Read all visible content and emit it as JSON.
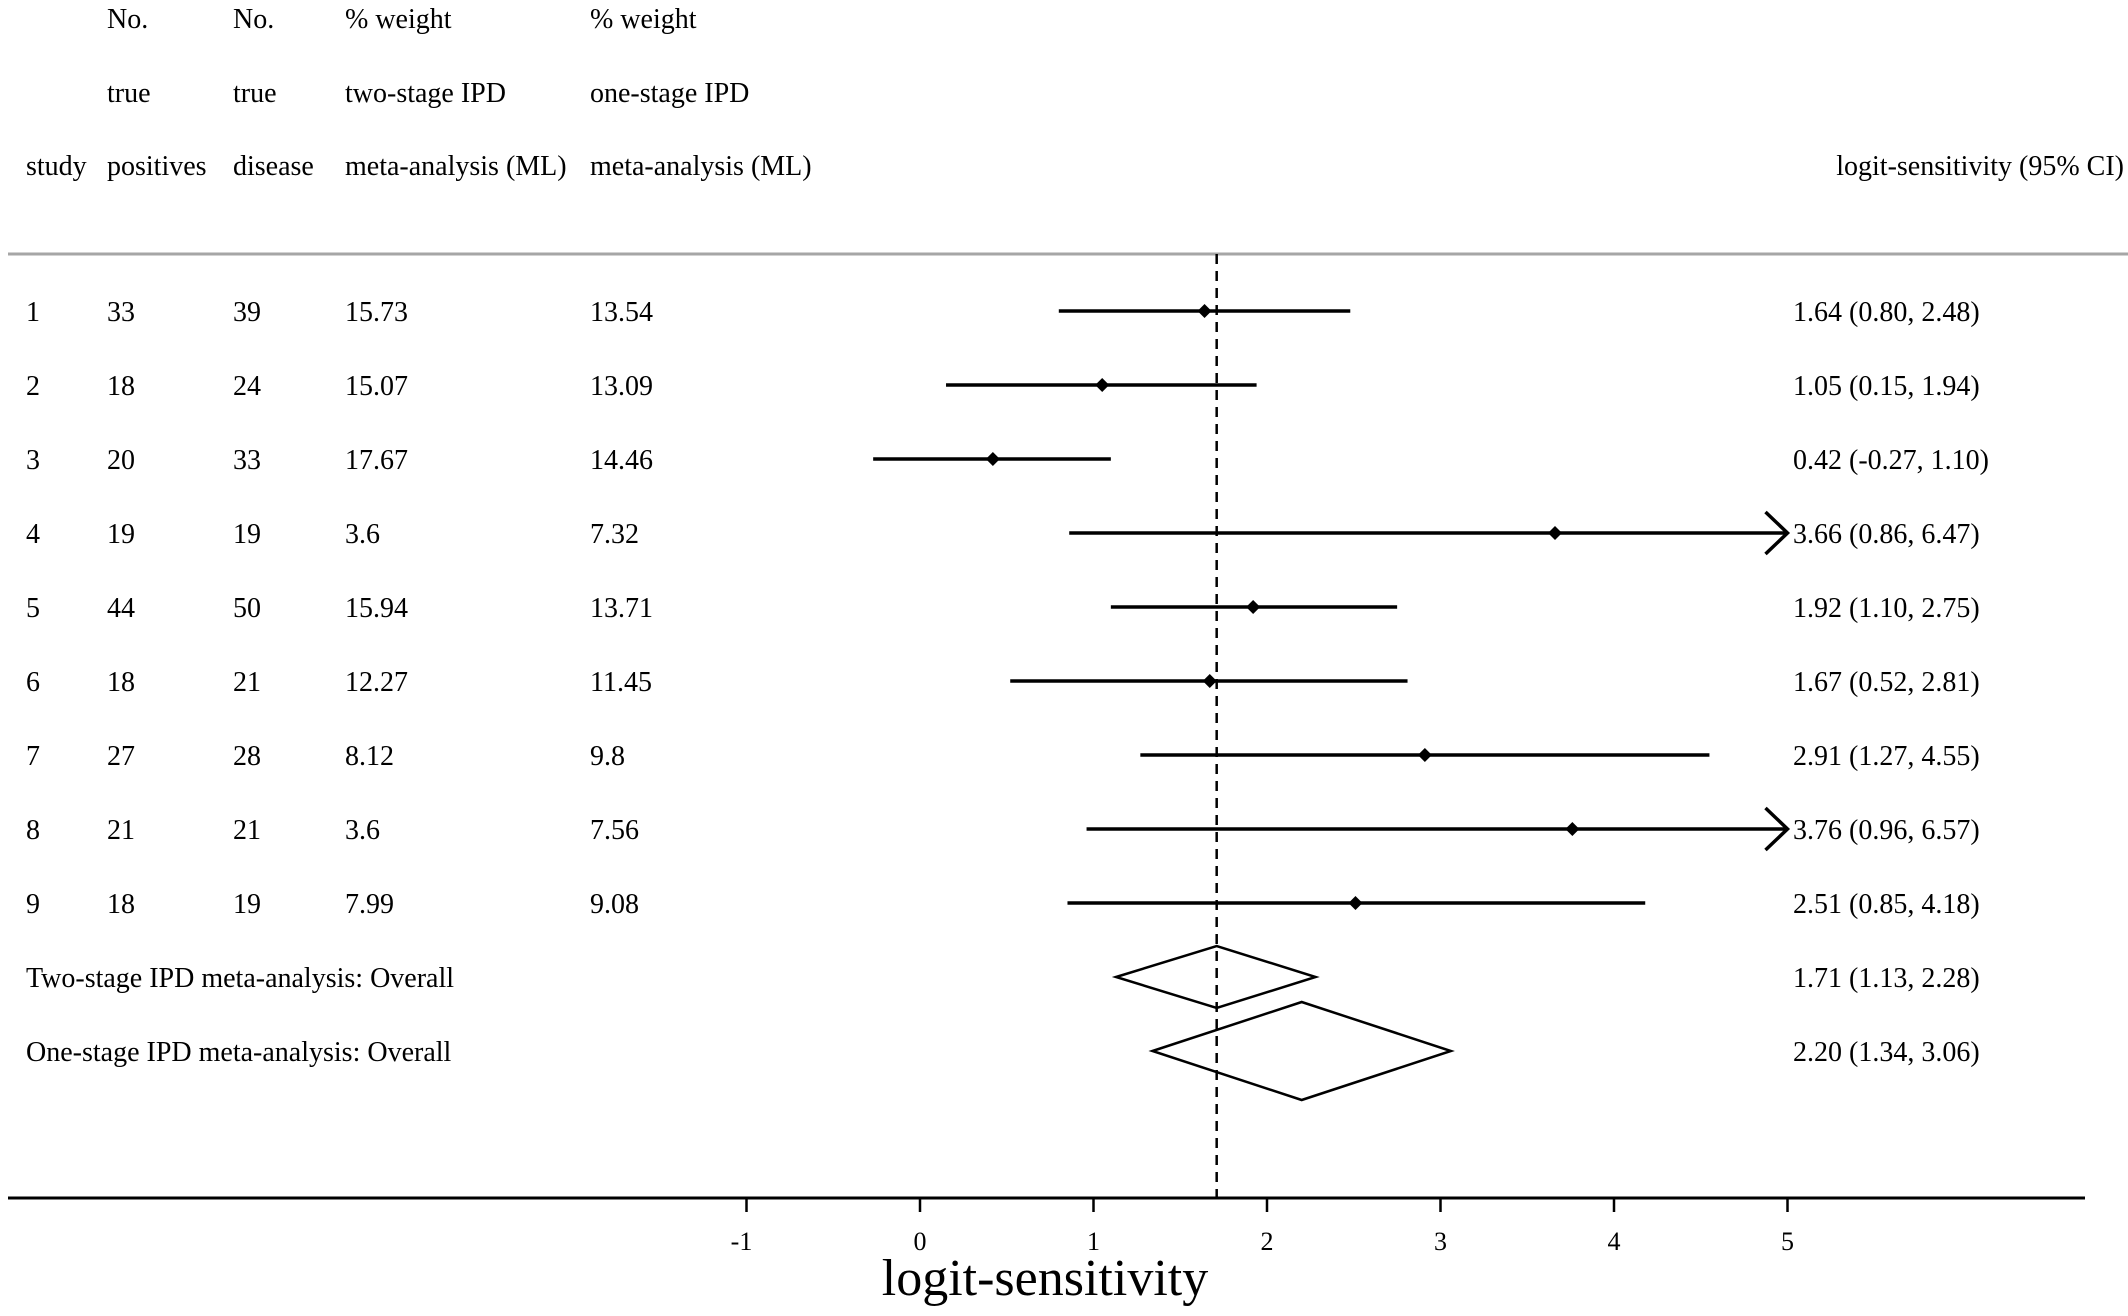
{
  "chart_data": {
    "type": "forest",
    "xlabel": "logit-sensitivity",
    "xticks": [
      -1,
      0,
      1,
      2,
      3,
      4,
      5
    ],
    "xlim": [
      -1,
      5
    ],
    "reference_line": 1.71,
    "columns": {
      "study": [
        "study"
      ],
      "tp": [
        "No.",
        "true",
        "positives"
      ],
      "disease": [
        "No.",
        "true",
        "disease"
      ],
      "w2": [
        "% weight",
        "two-stage IPD",
        "meta-analysis (ML)"
      ],
      "w1": [
        "% weight",
        "one-stage IPD",
        "meta-analysis (ML)"
      ],
      "ci": [
        "logit-sensitivity (95% CI)"
      ]
    },
    "studies": [
      {
        "study": "1",
        "tp": "33",
        "disease": "39",
        "w2": "15.73",
        "w1": "13.54",
        "est": 1.64,
        "lo": 0.8,
        "hi": 2.48,
        "ci": "1.64 (0.80, 2.48)"
      },
      {
        "study": "2",
        "tp": "18",
        "disease": "24",
        "w2": "15.07",
        "w1": "13.09",
        "est": 1.05,
        "lo": 0.15,
        "hi": 1.94,
        "ci": "1.05 (0.15, 1.94)"
      },
      {
        "study": "3",
        "tp": "20",
        "disease": "33",
        "w2": "17.67",
        "w1": "14.46",
        "est": 0.42,
        "lo": -0.27,
        "hi": 1.1,
        "ci": "0.42 (-0.27, 1.10)"
      },
      {
        "study": "4",
        "tp": "19",
        "disease": "19",
        "w2": "3.6",
        "w1": "7.32",
        "est": 3.66,
        "lo": 0.86,
        "hi": 6.47,
        "ci": "3.66 (0.86, 6.47)"
      },
      {
        "study": "5",
        "tp": "44",
        "disease": "50",
        "w2": "15.94",
        "w1": "13.71",
        "est": 1.92,
        "lo": 1.1,
        "hi": 2.75,
        "ci": "1.92 (1.10, 2.75)"
      },
      {
        "study": "6",
        "tp": "18",
        "disease": "21",
        "w2": "12.27",
        "w1": "11.45",
        "est": 1.67,
        "lo": 0.52,
        "hi": 2.81,
        "ci": "1.67 (0.52, 2.81)"
      },
      {
        "study": "7",
        "tp": "27",
        "disease": "28",
        "w2": "8.12",
        "w1": "9.8",
        "est": 2.91,
        "lo": 1.27,
        "hi": 4.55,
        "ci": "2.91 (1.27, 4.55)"
      },
      {
        "study": "8",
        "tp": "21",
        "disease": "21",
        "w2": "3.6",
        "w1": "7.56",
        "est": 3.76,
        "lo": 0.96,
        "hi": 6.57,
        "ci": "3.76 (0.96, 6.57)"
      },
      {
        "study": "9",
        "tp": "18",
        "disease": "19",
        "w2": "7.99",
        "w1": "9.08",
        "est": 2.51,
        "lo": 0.85,
        "hi": 4.18,
        "ci": "2.51 (0.85, 4.18)"
      }
    ],
    "overall": [
      {
        "label": "Two-stage IPD meta-analysis: Overall",
        "est": 1.71,
        "lo": 1.13,
        "hi": 2.28,
        "ci": "1.71 (1.13, 2.28)"
      },
      {
        "label": "One-stage IPD meta-analysis: Overall",
        "est": 2.2,
        "lo": 1.34,
        "hi": 3.06,
        "ci": "2.20 (1.34, 3.06)"
      }
    ]
  }
}
